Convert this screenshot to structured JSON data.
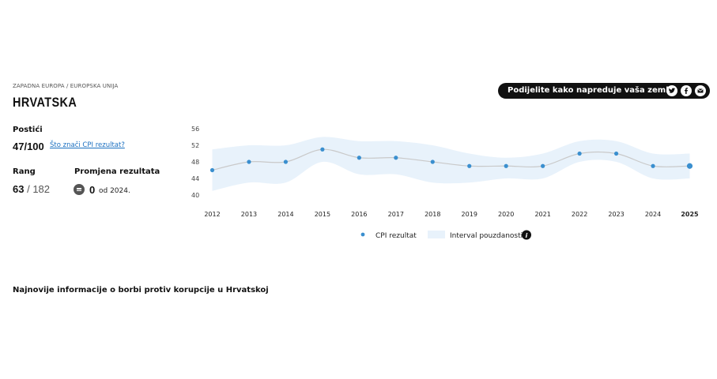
{
  "breadcrumb": "ZAPADNA EUROPA / EUROPSKA UNIJA",
  "country": "HRVATSKA",
  "score": {
    "label": "Postići",
    "value": "47/100",
    "link": "Što znači CPI rezultat?"
  },
  "rank": {
    "label": "Rang",
    "value": "63",
    "total": "/ 182"
  },
  "change": {
    "label": "Promjena rezultata",
    "value": "0",
    "since": "od 2024.",
    "icon": "equals-icon"
  },
  "share": {
    "text": "Podijelite kako napreduje vaša zemlja",
    "icons": [
      "twitter-icon",
      "facebook-icon",
      "email-icon"
    ]
  },
  "news_heading": "Najnovije informacije o borbi protiv korupcije u Hrvatskoj",
  "colors": {
    "point": "#3a8fcf",
    "band": "#e8f2fb",
    "line": "#bbbbbb"
  },
  "chart_data": {
    "type": "line",
    "x": [
      "2012",
      "2013",
      "2014",
      "2015",
      "2016",
      "2017",
      "2018",
      "2019",
      "2020",
      "2021",
      "2022",
      "2023",
      "2024",
      "2025"
    ],
    "series": [
      {
        "name": "CPI rezultat",
        "values": [
          46,
          48,
          48,
          51,
          49,
          49,
          48,
          47,
          47,
          47,
          50,
          50,
          47,
          47
        ]
      }
    ],
    "confidence_interval": {
      "name": "Interval pouzdanosti",
      "lower": [
        41,
        43,
        43,
        48,
        45,
        45,
        43,
        43,
        44,
        44,
        48,
        48,
        44,
        44
      ],
      "upper": [
        51,
        52,
        52,
        54,
        53,
        53,
        52,
        50,
        49,
        50,
        53,
        53,
        50,
        50
      ]
    },
    "yticks": [
      40,
      44,
      48,
      52,
      56
    ],
    "ylim": [
      40,
      56
    ],
    "highlight_x": "2025",
    "legend_position": "bottom"
  }
}
